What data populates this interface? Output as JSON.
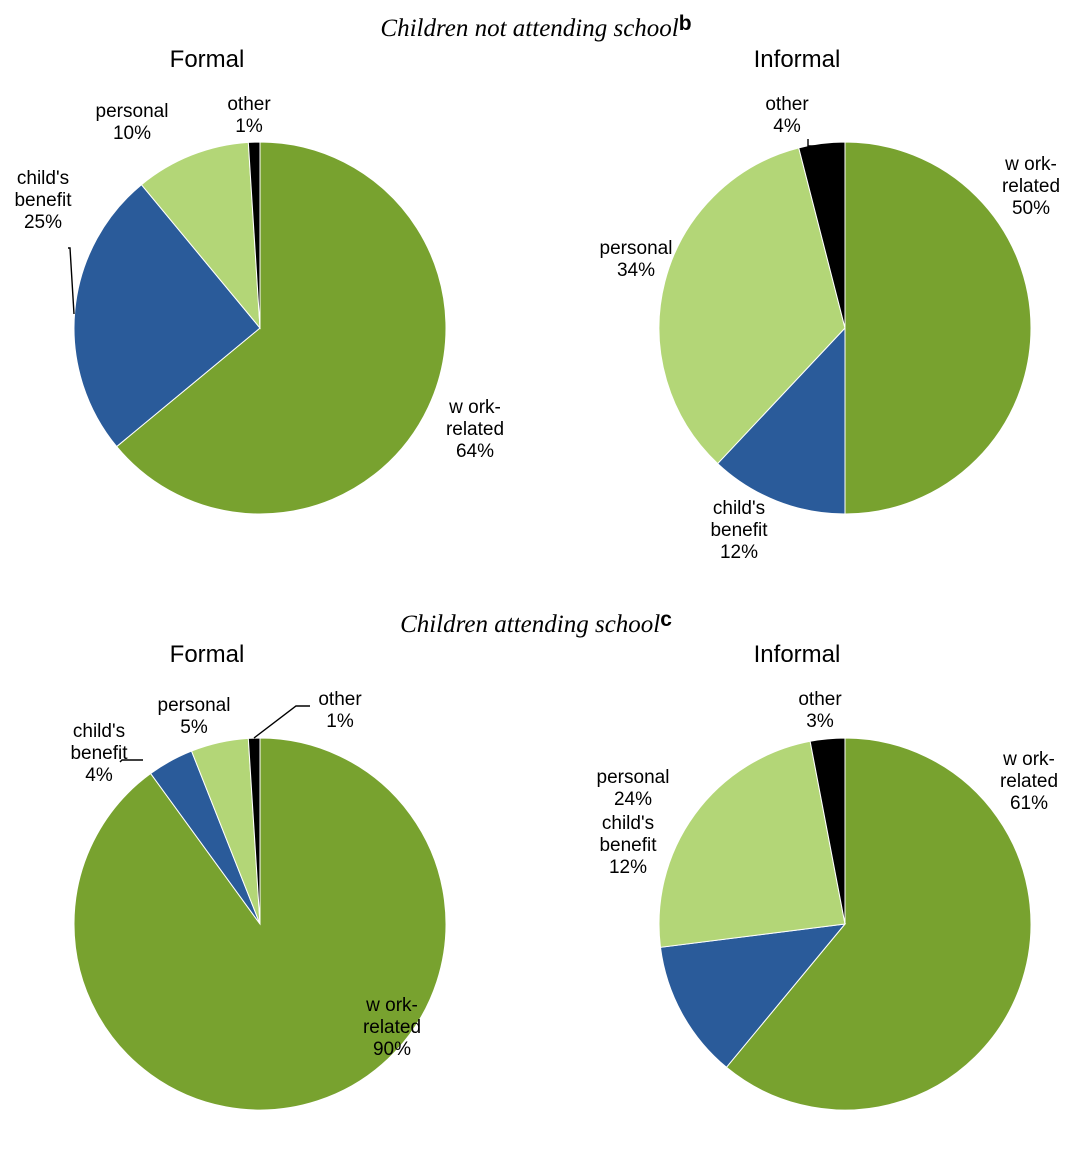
{
  "colors": {
    "work_related": "#78A22F",
    "childs_benefit": "#2A5B9A",
    "personal": "#B3D677",
    "other": "#000000"
  },
  "chart_data": [
    {
      "type": "pie",
      "section_title": "Children not attending school",
      "section_superscript": "b",
      "title": "Formal",
      "slices": [
        {
          "label": [
            "w ork-",
            "related"
          ],
          "value": 64,
          "pct": "64%",
          "color_key": "work_related"
        },
        {
          "label": [
            "child's",
            "benefit"
          ],
          "value": 25,
          "pct": "25%",
          "color_key": "childs_benefit"
        },
        {
          "label": [
            "personal"
          ],
          "value": 10,
          "pct": "10%",
          "color_key": "personal"
        },
        {
          "label": [
            "other"
          ],
          "value": 1,
          "pct": "1%",
          "color_key": "other"
        }
      ]
    },
    {
      "type": "pie",
      "title": "Informal",
      "slices": [
        {
          "label": [
            "w ork-",
            "related"
          ],
          "value": 50,
          "pct": "50%",
          "color_key": "work_related"
        },
        {
          "label": [
            "child's",
            "benefit"
          ],
          "value": 12,
          "pct": "12%",
          "color_key": "childs_benefit"
        },
        {
          "label": [
            "personal"
          ],
          "value": 34,
          "pct": "34%",
          "color_key": "personal"
        },
        {
          "label": [
            "other"
          ],
          "value": 4,
          "pct": "4%",
          "color_key": "other"
        }
      ]
    },
    {
      "type": "pie",
      "section_title": "Children attending school",
      "section_superscript": "c",
      "title": "Formal",
      "slices": [
        {
          "label": [
            "w ork-",
            "related"
          ],
          "value": 90,
          "pct": "90%",
          "color_key": "work_related"
        },
        {
          "label": [
            "child's",
            "benefit"
          ],
          "value": 4,
          "pct": "4%",
          "color_key": "childs_benefit"
        },
        {
          "label": [
            "personal"
          ],
          "value": 5,
          "pct": "5%",
          "color_key": "personal"
        },
        {
          "label": [
            "other"
          ],
          "value": 1,
          "pct": "1%",
          "color_key": "other"
        }
      ]
    },
    {
      "type": "pie",
      "title": "Informal",
      "slices": [
        {
          "label": [
            "w ork-",
            "related"
          ],
          "value": 61,
          "pct": "61%",
          "color_key": "work_related"
        },
        {
          "label": [
            "child's",
            "benefit"
          ],
          "value": 12,
          "pct": "12%",
          "color_key": "childs_benefit"
        },
        {
          "label": [
            "personal"
          ],
          "value": 24,
          "pct": "24%",
          "color_key": "personal"
        },
        {
          "label": [
            "other"
          ],
          "value": 3,
          "pct": "3%",
          "color_key": "other"
        }
      ]
    }
  ]
}
